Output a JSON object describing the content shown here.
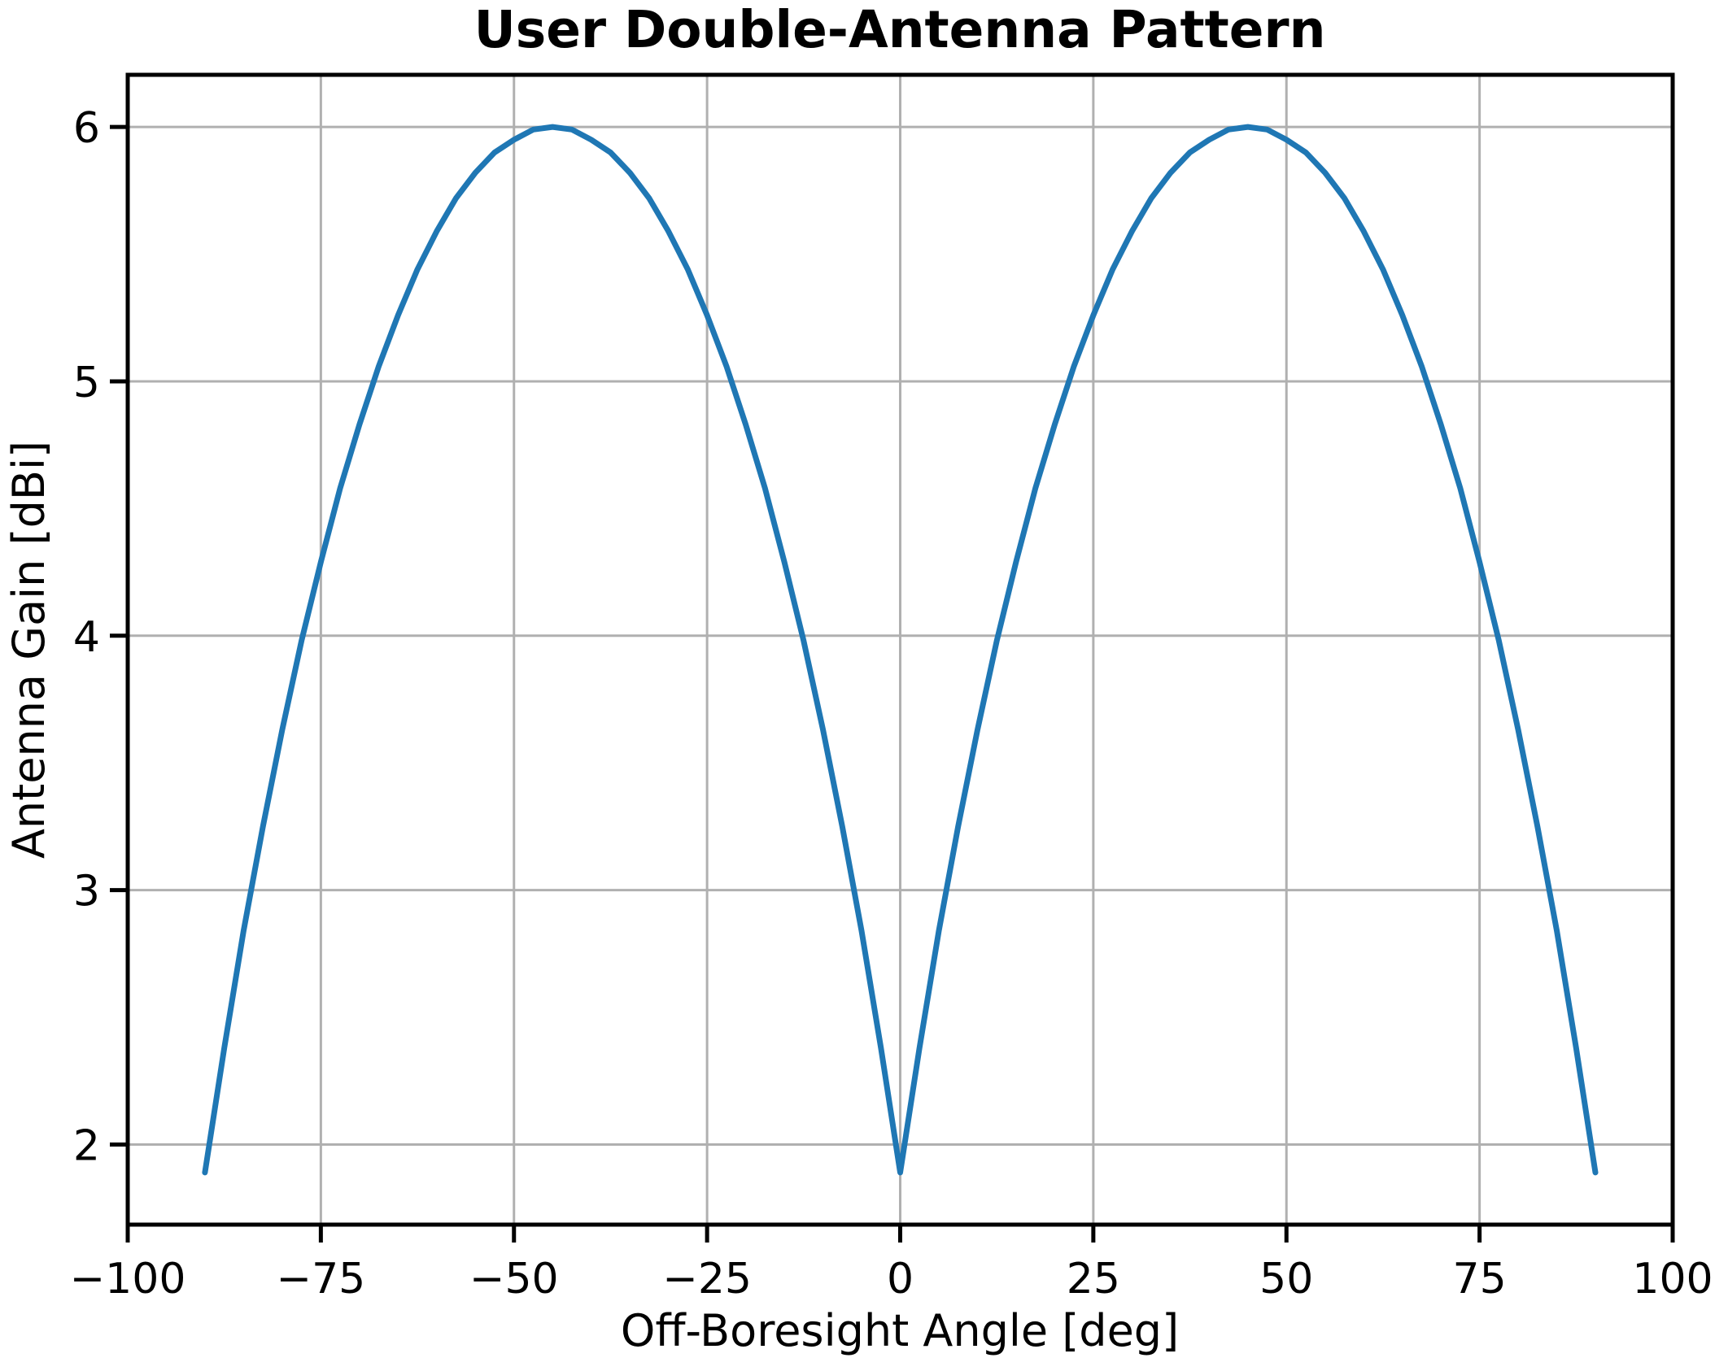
{
  "chart_data": {
    "type": "line",
    "title": "User Double-Antenna Pattern",
    "xlabel": "Off-Boresight Angle [deg]",
    "ylabel": "Antenna Gain [dBi]",
    "xlim": [
      -100,
      100
    ],
    "ylim": [
      1.685,
      6.205
    ],
    "xticks": [
      -100,
      -75,
      -50,
      -25,
      0,
      25,
      50,
      75,
      100
    ],
    "xticklabels": [
      "−100",
      "−75",
      "−50",
      "−25",
      "0",
      "25",
      "50",
      "75",
      "100"
    ],
    "yticks": [
      2,
      3,
      4,
      5,
      6
    ],
    "yticklabels": [
      "2",
      "3",
      "4",
      "5",
      "6"
    ],
    "grid": true,
    "legend": "none",
    "line_color": "#1f77b4",
    "grid_color": "#b0b0b0",
    "axis_color": "#000000",
    "series": [
      {
        "name": "antenna-gain",
        "x": [
          -90,
          -87.5,
          -85,
          -82.5,
          -80,
          -77.5,
          -75,
          -72.5,
          -70,
          -67.5,
          -65,
          -62.5,
          -60,
          -57.5,
          -55,
          -52.5,
          -50,
          -47.5,
          -45,
          -42.5,
          -40,
          -37.5,
          -35,
          -32.5,
          -30,
          -27.5,
          -25,
          -22.5,
          -20,
          -17.5,
          -15,
          -12.5,
          -10,
          -7.5,
          -5,
          -2.5,
          0,
          2.5,
          5,
          7.5,
          10,
          12.5,
          15,
          17.5,
          20,
          22.5,
          25,
          27.5,
          30,
          32.5,
          35,
          37.5,
          40,
          42.5,
          45,
          47.5,
          50,
          52.5,
          55,
          57.5,
          60,
          62.5,
          65,
          67.5,
          70,
          72.5,
          75,
          77.5,
          80,
          82.5,
          85,
          87.5,
          90
        ],
        "y": [
          1.89,
          2.38,
          2.84,
          3.25,
          3.63,
          3.98,
          4.29,
          4.58,
          4.83,
          5.06,
          5.26,
          5.44,
          5.59,
          5.72,
          5.82,
          5.9,
          5.95,
          5.99,
          6.0,
          5.99,
          5.95,
          5.9,
          5.82,
          5.72,
          5.59,
          5.44,
          5.26,
          5.06,
          4.83,
          4.58,
          4.29,
          3.98,
          3.63,
          3.25,
          2.84,
          2.38,
          1.89,
          2.38,
          2.84,
          3.25,
          3.63,
          3.98,
          4.29,
          4.58,
          4.83,
          5.06,
          5.26,
          5.44,
          5.59,
          5.72,
          5.82,
          5.9,
          5.95,
          5.99,
          6.0,
          5.99,
          5.95,
          5.9,
          5.82,
          5.72,
          5.59,
          5.44,
          5.26,
          5.06,
          4.83,
          4.58,
          4.29,
          3.98,
          3.63,
          3.25,
          2.84,
          2.38,
          1.89
        ]
      }
    ]
  }
}
